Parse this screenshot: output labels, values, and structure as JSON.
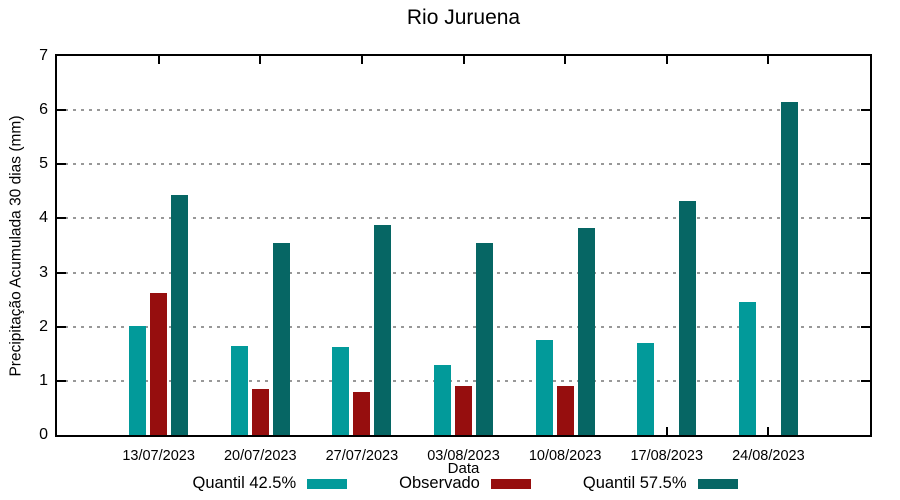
{
  "chart_data": {
    "type": "bar",
    "title": "Rio Juruena",
    "xlabel": "Data",
    "ylabel": "Precipitação Acumulada 30 dias (mm)",
    "ylim": [
      0,
      7
    ],
    "yticks": [
      0,
      1,
      2,
      3,
      4,
      5,
      6,
      7
    ],
    "grid": "horizontal-dotted",
    "grid_color": "#989898",
    "legend_position": "bottom-center",
    "background_color": "#ffffff",
    "categories": [
      "13/07/2023",
      "20/07/2023",
      "27/07/2023",
      "03/08/2023",
      "10/08/2023",
      "17/08/2023",
      "24/08/2023"
    ],
    "series": [
      {
        "name": "Quantil 42.5%",
        "color": "#029a9a",
        "values": [
          2.02,
          1.65,
          1.63,
          1.3,
          1.75,
          1.7,
          2.45
        ]
      },
      {
        "name": "Observado",
        "color": "#960e0e",
        "values": [
          2.62,
          0.85,
          0.8,
          0.9,
          0.9,
          null,
          null
        ]
      },
      {
        "name": "Quantil 57.5%",
        "color": "#066664",
        "values": [
          4.43,
          3.55,
          3.87,
          3.55,
          3.82,
          4.33,
          6.15
        ]
      }
    ]
  }
}
